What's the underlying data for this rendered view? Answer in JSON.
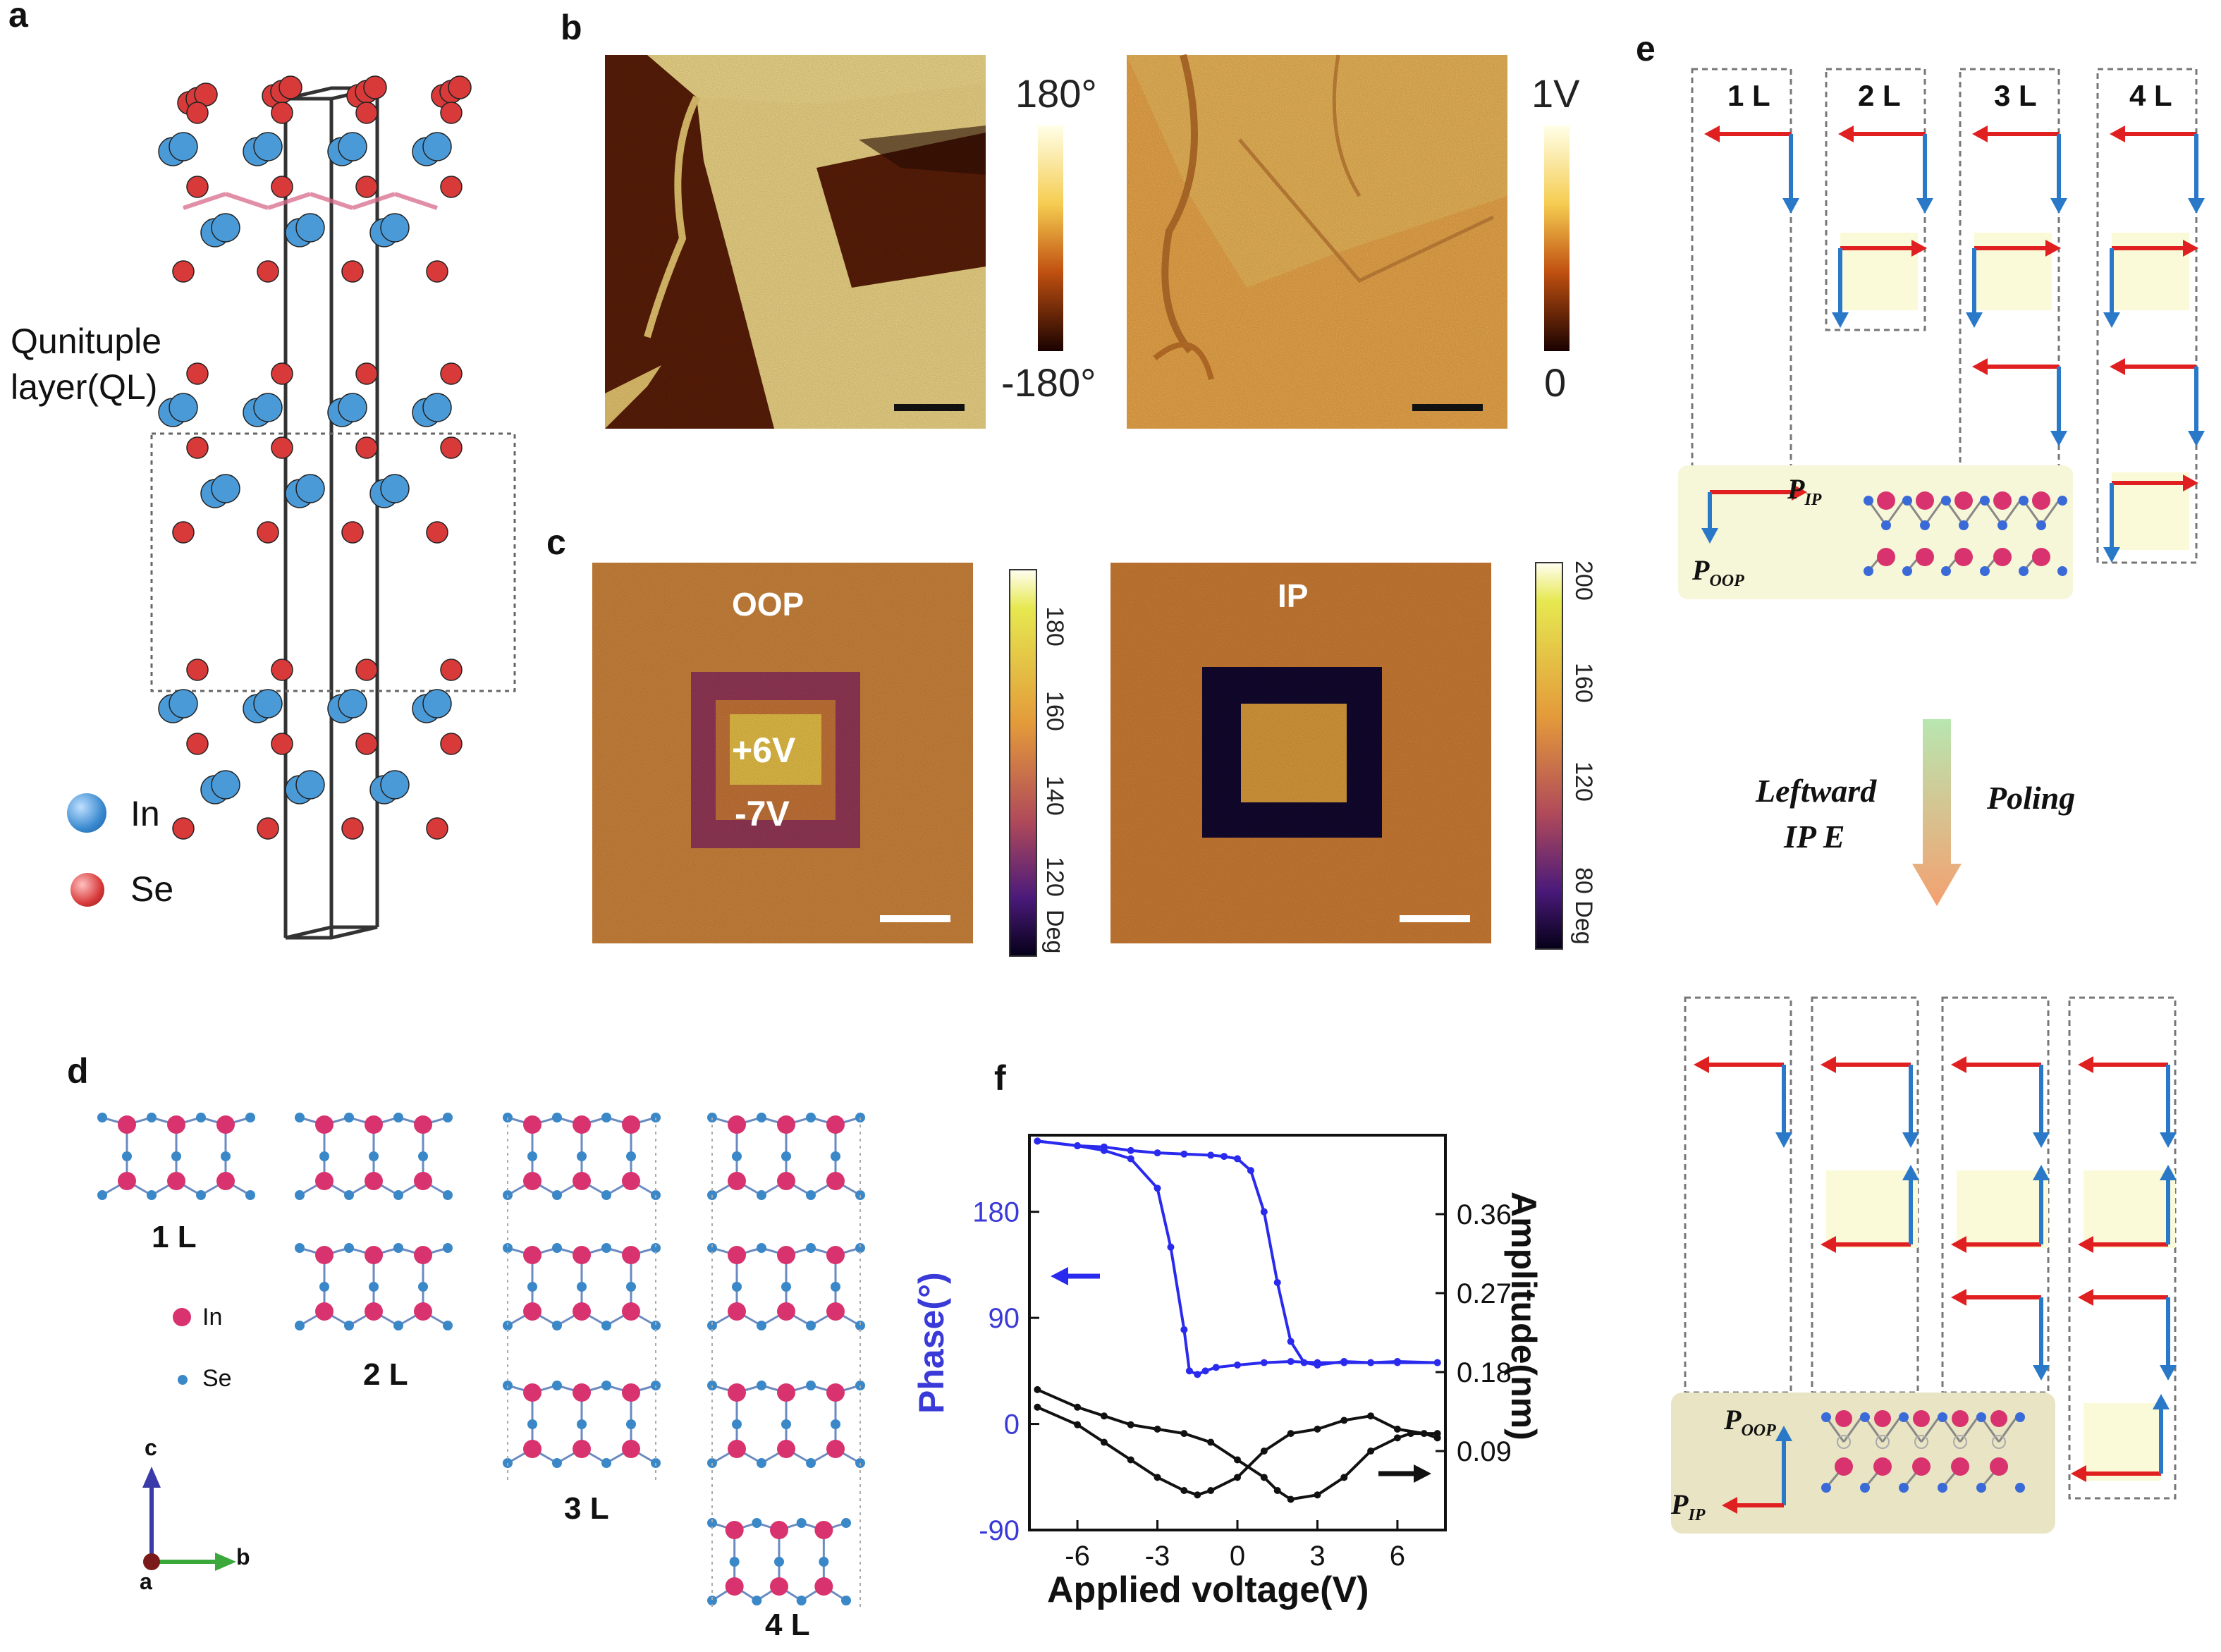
{
  "panels": {
    "a": {
      "label": "a",
      "ql_text_1": "Qunituple",
      "ql_text_2": "layer(QL)",
      "legend": [
        {
          "name": "In",
          "color": "#4a9ad8"
        },
        {
          "name": "Se",
          "color": "#d83a3a"
        }
      ]
    },
    "b": {
      "label": "b",
      "phase_colorbar": {
        "max": "180°",
        "min": "-180°"
      },
      "amp_colorbar": {
        "max": "1V",
        "min": "0"
      }
    },
    "c": {
      "label": "c",
      "oop_title": "OOP",
      "ip_title": "IP",
      "write_outer": "-7V",
      "write_inner": "+6V",
      "oop_ticks": [
        "180",
        "160",
        "140",
        "120",
        "Deg"
      ],
      "ip_ticks": [
        "200",
        "160",
        "120",
        "80 Deg"
      ]
    },
    "d": {
      "label": "d",
      "layers": [
        "1 L",
        "2 L",
        "3 L",
        "4 L"
      ],
      "legend": [
        {
          "name": "In",
          "color": "#d8336f"
        },
        {
          "name": "Se",
          "color": "#3a88c8"
        }
      ],
      "axes": {
        "c": "c",
        "b": "b",
        "a": "a"
      }
    },
    "e": {
      "label": "e",
      "layers": [
        "1 L",
        "2 L",
        "3 L",
        "4 L"
      ],
      "p_ip": "P",
      "p_ip_sub": "IP",
      "p_oop": "P",
      "p_oop_sub": "OOP",
      "arrow_left_text_1": "Leftward",
      "arrow_left_text_2": "IP E",
      "arrow_right_text": "Poling"
    },
    "f": {
      "label": "f"
    }
  },
  "chart_data": {
    "type": "line",
    "xlabel": "Applied voltage(V)",
    "ylabel": "Phase(°)",
    "y2label": "Amplitude(nm)",
    "xlim": [
      -7.8,
      7.8
    ],
    "ylim": [
      -90,
      245
    ],
    "y2lim": [
      0.0,
      0.45
    ],
    "xticks": [
      "-6",
      "-3",
      "0",
      "3",
      "6"
    ],
    "yticks": [
      "180",
      "90",
      "0",
      "-90"
    ],
    "y2ticks": [
      "0.36",
      "0.27",
      "0.18",
      "0.09"
    ],
    "series": [
      {
        "axis": "left",
        "color": "#2a2aee",
        "x": [
          -7.5,
          -6,
          -5,
          -4,
          -3,
          -2.5,
          -2,
          -1.8,
          -1.5,
          -1.2,
          -0.8,
          0,
          1,
          2,
          3,
          4,
          5,
          6,
          7.5
        ],
        "y": [
          240,
          236,
          232,
          225,
          200,
          150,
          80,
          45,
          42,
          45,
          48,
          50,
          52,
          53,
          52,
          52,
          52,
          53,
          52
        ]
      },
      {
        "axis": "left",
        "color": "#2a2aee",
        "x": [
          7.5,
          6,
          5,
          4,
          3,
          2.5,
          2,
          1.5,
          1,
          0.5,
          0,
          -0.5,
          -1,
          -2,
          -3,
          -4,
          -5,
          -6,
          -7.5
        ],
        "y": [
          52,
          52,
          52,
          53,
          50,
          52,
          70,
          120,
          180,
          215,
          225,
          227,
          228,
          229,
          230,
          232,
          235,
          236,
          240
        ]
      },
      {
        "axis": "right",
        "color": "#111111",
        "x": [
          -7.5,
          -6,
          -5,
          -4,
          -3,
          -2,
          -1.5,
          -1,
          0,
          1,
          2,
          3,
          4,
          5,
          6,
          7,
          7.5
        ],
        "y": [
          0.14,
          0.12,
          0.1,
          0.08,
          0.06,
          0.045,
          0.04,
          0.045,
          0.06,
          0.09,
          0.11,
          0.115,
          0.125,
          0.13,
          0.115,
          0.11,
          0.105
        ]
      },
      {
        "axis": "right",
        "color": "#111111",
        "x": [
          7.5,
          6.5,
          6,
          5,
          4,
          3,
          2,
          1.5,
          1,
          0,
          -1,
          -2,
          -3,
          -4,
          -5,
          -6,
          -7.5
        ],
        "y": [
          0.11,
          0.11,
          0.105,
          0.09,
          0.06,
          0.04,
          0.035,
          0.045,
          0.06,
          0.08,
          0.1,
          0.11,
          0.115,
          0.12,
          0.13,
          0.14,
          0.16
        ]
      }
    ]
  }
}
